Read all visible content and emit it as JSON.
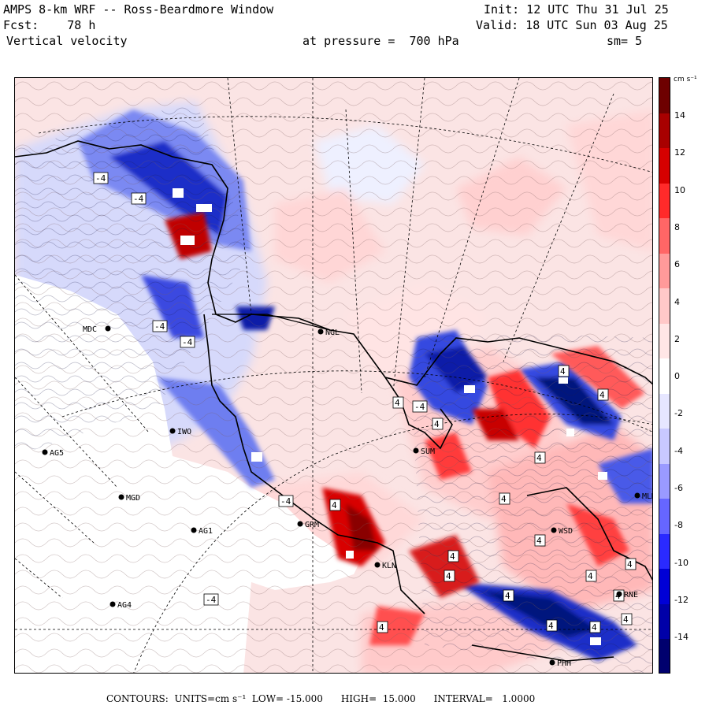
{
  "header": {
    "title": "AMPS 8-km WRF -- Ross-Beardmore Window",
    "forecast": "Fcst:    78 h",
    "field": "Vertical velocity",
    "init": "Init: 12 UTC Thu 31 Jul 25",
    "valid": "Valid: 18 UTC Sun 03 Aug 25",
    "pressure": "at pressure =  700 hPa",
    "smooth": "sm= 5"
  },
  "colorbar": {
    "unit_label": "cm s⁻¹",
    "ticks": [
      "14",
      "12",
      "10",
      "8",
      "6",
      "4",
      "2",
      "0",
      "-2",
      "-4",
      "-6",
      "-8",
      "-10",
      "-12",
      "-14"
    ],
    "colors_top_to_bottom": [
      "#6e0000",
      "#a80000",
      "#d60000",
      "#ff2a2a",
      "#ff6666",
      "#ff9a9a",
      "#ffc8c8",
      "#ffe6e6",
      "#ffffff",
      "#e6e6ff",
      "#c8c8ff",
      "#9a9aff",
      "#6666ff",
      "#2a2aff",
      "#0000d6",
      "#0000a8",
      "#00006e"
    ]
  },
  "stations": [
    {
      "name": "MDC"
    },
    {
      "name": "NGL"
    },
    {
      "name": "IWO"
    },
    {
      "name": "AG5"
    },
    {
      "name": "MGD"
    },
    {
      "name": "AG1"
    },
    {
      "name": "AG4"
    },
    {
      "name": "GRM"
    },
    {
      "name": "KLN"
    },
    {
      "name": "SUM"
    },
    {
      "name": "WSD"
    },
    {
      "name": "RNE"
    },
    {
      "name": "PHH"
    },
    {
      "name": "MLM"
    }
  ],
  "contour_labels": [
    "-4",
    "-4",
    "-4",
    "-4",
    "-4",
    "-4",
    "-4",
    "4",
    "4",
    "4",
    "4",
    "4",
    "4",
    "4",
    "4",
    "4",
    "4",
    "4",
    "4",
    "4",
    "4",
    "4",
    "4",
    "4",
    "4"
  ],
  "footer": {
    "text": "CONTOURS:  UNITS=cm s⁻¹  LOW= -15.000      HIGH=  15.000      INTERVAL=   1.0000"
  }
}
